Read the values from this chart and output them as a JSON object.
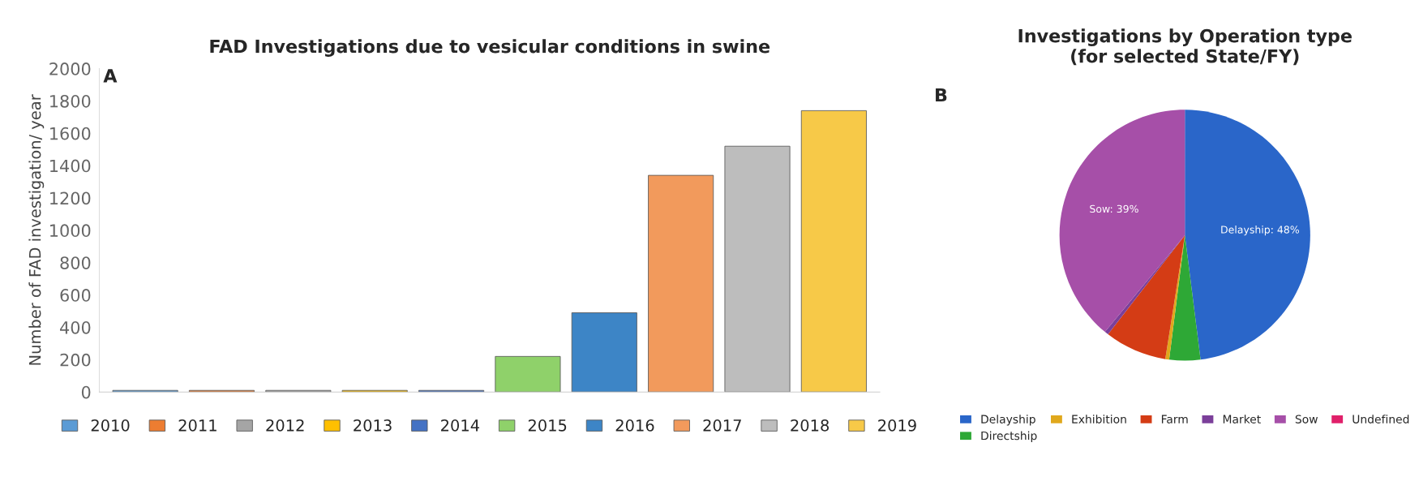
{
  "chart_data": [
    {
      "type": "bar",
      "title": "FAD Investigations due to vesicular conditions in swine",
      "ylabel": "Number of FAD investigation/ year",
      "categories": [
        null,
        null,
        null,
        null,
        null,
        null,
        null,
        null,
        null,
        null
      ],
      "series": [
        {
          "name": "2010",
          "color": "#5b9bd5",
          "values": [
            10,
            null,
            null,
            null,
            null,
            null,
            null,
            null,
            null,
            null
          ]
        },
        {
          "name": "2011",
          "color": "#ed7d31",
          "values": [
            null,
            10,
            null,
            null,
            null,
            null,
            null,
            null,
            null,
            null
          ]
        },
        {
          "name": "2012",
          "color": "#a5a5a5",
          "values": [
            null,
            null,
            10,
            null,
            null,
            null,
            null,
            null,
            null,
            null
          ]
        },
        {
          "name": "2013",
          "color": "#ffc000",
          "values": [
            null,
            null,
            null,
            10,
            null,
            null,
            null,
            null,
            null,
            null
          ]
        },
        {
          "name": "2014",
          "color": "#4472c4",
          "values": [
            null,
            null,
            null,
            null,
            10,
            null,
            null,
            null,
            null,
            null
          ]
        },
        {
          "name": "2015",
          "color": "#8fd16a",
          "values": [
            null,
            null,
            null,
            null,
            null,
            220,
            null,
            null,
            null,
            null
          ]
        },
        {
          "name": "2016",
          "color": "#3d85c6",
          "values": [
            null,
            null,
            null,
            null,
            null,
            null,
            490,
            null,
            null,
            null
          ]
        },
        {
          "name": "2017",
          "color": "#f29a5c",
          "values": [
            null,
            null,
            null,
            null,
            null,
            null,
            null,
            1340,
            null,
            null
          ]
        },
        {
          "name": "2018",
          "color": "#bdbdbd",
          "values": [
            null,
            null,
            null,
            null,
            null,
            null,
            null,
            null,
            1520,
            null
          ]
        },
        {
          "name": "2019",
          "color": "#f7c948",
          "values": [
            null,
            null,
            null,
            null,
            null,
            null,
            null,
            null,
            null,
            1740
          ]
        }
      ],
      "ylim": [
        0,
        2000
      ],
      "yticks": [
        0,
        200,
        400,
        600,
        800,
        1000,
        1200,
        1400,
        1600,
        1800,
        2000
      ],
      "tick_labels": "y",
      "legend": "bottom",
      "annotations": [
        "A"
      ]
    },
    {
      "type": "pie",
      "title": "Investigations by Operation type\n(for selected State/FY)",
      "categories": [
        "Delayship",
        "Directship",
        "Exhibition",
        "Farm",
        "Market",
        "Sow",
        "Undefined"
      ],
      "values": [
        48,
        4,
        0.5,
        8,
        0.5,
        39,
        0
      ],
      "colors": [
        "#2a66c9",
        "#2ea836",
        "#e0a81c",
        "#d43c15",
        "#7b3f9a",
        "#a64fa8",
        "#e0206a"
      ],
      "value_labels": [
        "Delayship: 48%",
        null,
        null,
        null,
        null,
        "Sow: 39%",
        null
      ],
      "legend": "bottom",
      "annotations": [
        "B"
      ]
    }
  ]
}
